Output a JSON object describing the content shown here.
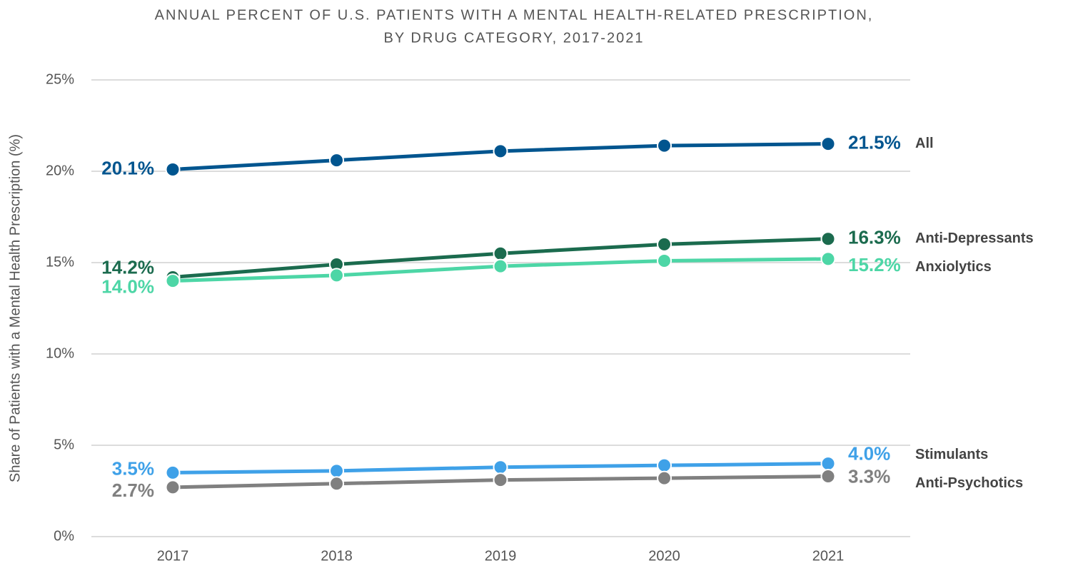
{
  "chart_data": {
    "type": "line",
    "title": "ANNUAL PERCENT OF U.S. PATIENTS WITH A MENTAL HEALTH-RELATED PRESCRIPTION,",
    "subtitle": "BY DRUG CATEGORY, 2017-2021",
    "y_label": "Share of Patients with a Mental Health Prescription (%)",
    "categories": [
      "2017",
      "2018",
      "2019",
      "2020",
      "2021"
    ],
    "series": [
      {
        "name": "All",
        "color": "#00558f",
        "values": [
          20.1,
          20.6,
          21.1,
          21.4,
          21.5
        ],
        "value_labels": [
          "20.1%",
          null,
          null,
          null,
          "21.5%"
        ]
      },
      {
        "name": "Anti-Depressants",
        "color": "#1b6b4e",
        "values": [
          14.2,
          14.9,
          15.5,
          16.0,
          16.3
        ],
        "value_labels": [
          "14.2%",
          null,
          null,
          null,
          "16.3%"
        ]
      },
      {
        "name": "Anxiolytics",
        "color": "#4dd6a6",
        "values": [
          14.0,
          14.3,
          14.8,
          15.1,
          15.2
        ],
        "value_labels": [
          "14.0%",
          null,
          null,
          null,
          "15.2%"
        ]
      },
      {
        "name": "Stimulants",
        "color": "#3fa1e8",
        "values": [
          3.5,
          3.6,
          3.8,
          3.9,
          4.0
        ],
        "value_labels": [
          "3.5%",
          null,
          null,
          null,
          "4.0%"
        ]
      },
      {
        "name": "Anti-Psychotics",
        "color": "#808080",
        "values": [
          2.7,
          2.9,
          3.1,
          3.2,
          3.3
        ],
        "value_labels": [
          "2.7%",
          null,
          null,
          null,
          "3.3%"
        ]
      }
    ],
    "ylim": [
      0,
      25
    ],
    "yticks": [
      {
        "value": 0,
        "label": "0%"
      },
      {
        "value": 5,
        "label": "5%"
      },
      {
        "value": 10,
        "label": "10%"
      },
      {
        "value": 15,
        "label": "15%"
      },
      {
        "value": 20,
        "label": "20%"
      },
      {
        "value": 25,
        "label": "25%"
      }
    ],
    "grid": true
  }
}
